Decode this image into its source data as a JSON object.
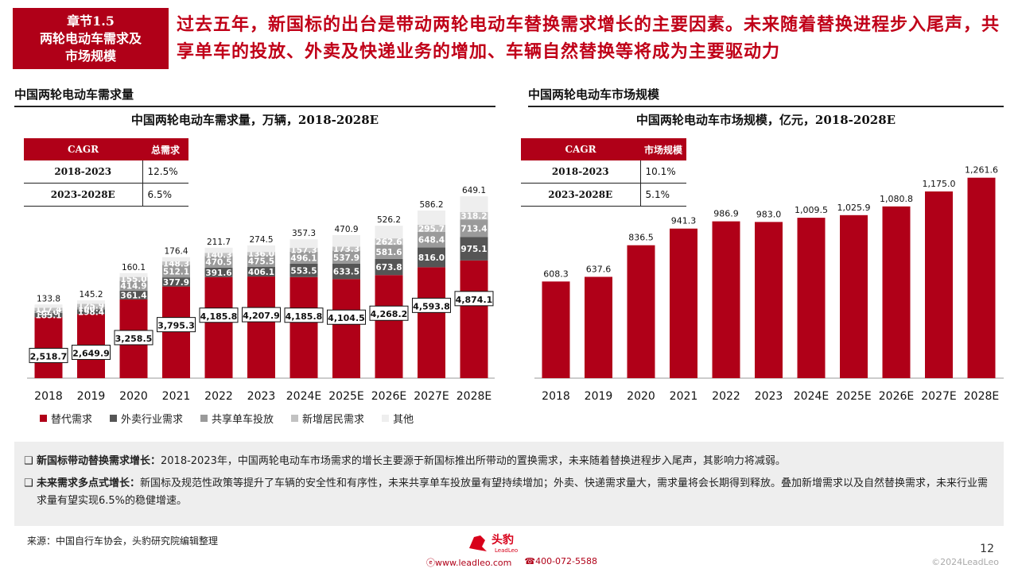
{
  "chapter": {
    "line1": "章节1.5",
    "line2": "两轮电动车需求及",
    "line3": "市场规模"
  },
  "headline": "过去五年，新国标的出台是带动两轮电动车替换需求增长的主要因素。未来随着替换进程步入尾声，共享单车的投放、外卖及快递业务的增加、车辆自然替换等将成为主要驱动力",
  "left": {
    "section_title": "中国两轮电动车需求量",
    "chart_title": "中国两轮电动车需求量，万辆，2018-2028E",
    "table": {
      "headers": [
        "CAGR",
        "总需求"
      ],
      "rows": [
        [
          "2018-2023",
          "12.5%"
        ],
        [
          "2023-2028E",
          "6.5%"
        ]
      ]
    }
  },
  "right": {
    "section_title": "中国两轮电动车市场规模",
    "chart_title": "中国两轮电动车市场规模，亿元，2018-2028E",
    "table": {
      "headers": [
        "CAGR",
        "市场规模"
      ],
      "rows": [
        [
          "2018-2023",
          "10.1%"
        ],
        [
          "2023-2028E",
          "5.1%"
        ]
      ]
    }
  },
  "legend": [
    "替代需求",
    "外卖行业需求",
    "共享单车投放",
    "新增居民需求",
    "其他"
  ],
  "colors": {
    "accent": "#b00018",
    "takeout": "#555555",
    "shared": "#9a9a9a",
    "new": "#c2c2c2",
    "other": "#eeeeee"
  },
  "notes": [
    {
      "bold": "新国标带动替换需求增长：",
      "text": "2018-2023年，中国两轮电动车市场需求的增长主要源于新国标推出所带动的置换需求，未来随着替换进程步入尾声，其影响力将减弱。"
    },
    {
      "bold": "未来需求多点式增长：",
      "text": "新国标及规范性政策等提升了车辆的安全性和有序性，未来共享单车投放量有望持续增加；外卖、快递需求量大，需求量将会长期得到释放。叠加新增需求以及自然替换需求，未来行业需求量有望实现6.5%的稳健增速。"
    }
  ],
  "note_box": "❑",
  "source": "来源：中国自行车协会，头豹研究院编辑整理",
  "logo": {
    "cn": "头豹",
    "en": "LeadLeo"
  },
  "footer": {
    "web": "www.leadleo.com",
    "phone": "400-072-5588"
  },
  "page_number": "12",
  "copyright": "©2024LeadLeo",
  "chart_data": [
    {
      "type": "bar",
      "stacked": true,
      "title": "中国两轮电动车需求量，万辆，2018-2028E",
      "categories": [
        "2018",
        "2019",
        "2020",
        "2021",
        "2022",
        "2023",
        "2024E",
        "2025E",
        "2026E",
        "2027E",
        "2028E"
      ],
      "series": [
        {
          "name": "替代需求",
          "values": [
            2518.7,
            2649.9,
            3258.5,
            3795.3,
            4185.8,
            4207.9,
            4185.8,
            4104.5,
            4268.2,
            4593.8,
            4874.1
          ],
          "labels": [
            "2,518.7",
            "2,649.9",
            "3,258.5",
            "3,795.3",
            "4,185.8",
            "4,207.9",
            "4,185.8",
            "4,104.5",
            "4,268.2",
            "4,593.8",
            "4,874.1"
          ]
        },
        {
          "name": "外卖行业需求",
          "values": [
            185.1,
            198.4,
            361.4,
            377.9,
            391.6,
            406.1,
            553.5,
            633.5,
            673.8,
            816.0,
            975.1
          ],
          "labels": [
            "185.1",
            "198.4",
            "361.4",
            "377.9",
            "391.6",
            "406.1",
            "553.5",
            "633.5",
            "673.8",
            "816.0",
            "975.1"
          ]
        },
        {
          "name": "共享单车投放",
          "values": [
            95.0,
            100.7,
            414.9,
            512.1,
            470.5,
            475.5,
            496.1,
            537.9,
            581.6,
            648.4,
            713.4
          ],
          "labels": [
            "95.0",
            "100.7",
            "414.9",
            "512.1",
            "470.5",
            "475.5",
            "496.1",
            "537.9",
            "581.6",
            "648.4",
            "713.4"
          ]
        },
        {
          "name": "新增居民需求",
          "values": [
            117.4,
            125.9,
            155.0,
            148.3,
            140.3,
            136.0,
            157.3,
            173.3,
            262.6,
            295.7,
            318.2
          ],
          "labels": [
            "117.4",
            "125.9",
            "155.0",
            "148.3",
            "140.3",
            "136.0",
            "157.3",
            "173.3",
            "262.6",
            "295.7",
            "318.2"
          ]
        },
        {
          "name": "其他",
          "values": [
            133.8,
            145.2,
            160.1,
            176.4,
            211.7,
            274.5,
            357.3,
            470.9,
            526.2,
            586.2,
            649.1
          ],
          "labels": [
            "133.8",
            "145.2",
            "160.1",
            "176.4",
            "211.7",
            "274.5",
            "357.3",
            "470.9",
            "526.2",
            "586.2",
            "649.1"
          ]
        }
      ],
      "legend_position": "bottom"
    },
    {
      "type": "bar",
      "title": "中国两轮电动车市场规模，亿元，2018-2028E",
      "categories": [
        "2018",
        "2019",
        "2020",
        "2021",
        "2022",
        "2023",
        "2024E",
        "2025E",
        "2026E",
        "2027E",
        "2028E"
      ],
      "values": [
        608.3,
        637.6,
        836.5,
        941.3,
        986.9,
        983.0,
        1009.5,
        1025.9,
        1080.8,
        1175.0,
        1261.6
      ],
      "labels": [
        "608.3",
        "637.6",
        "836.5",
        "941.3",
        "986.9",
        "983.0",
        "1,009.5",
        "1,025.9",
        "1,080.8",
        "1,175.0",
        "1,261.6"
      ]
    }
  ]
}
